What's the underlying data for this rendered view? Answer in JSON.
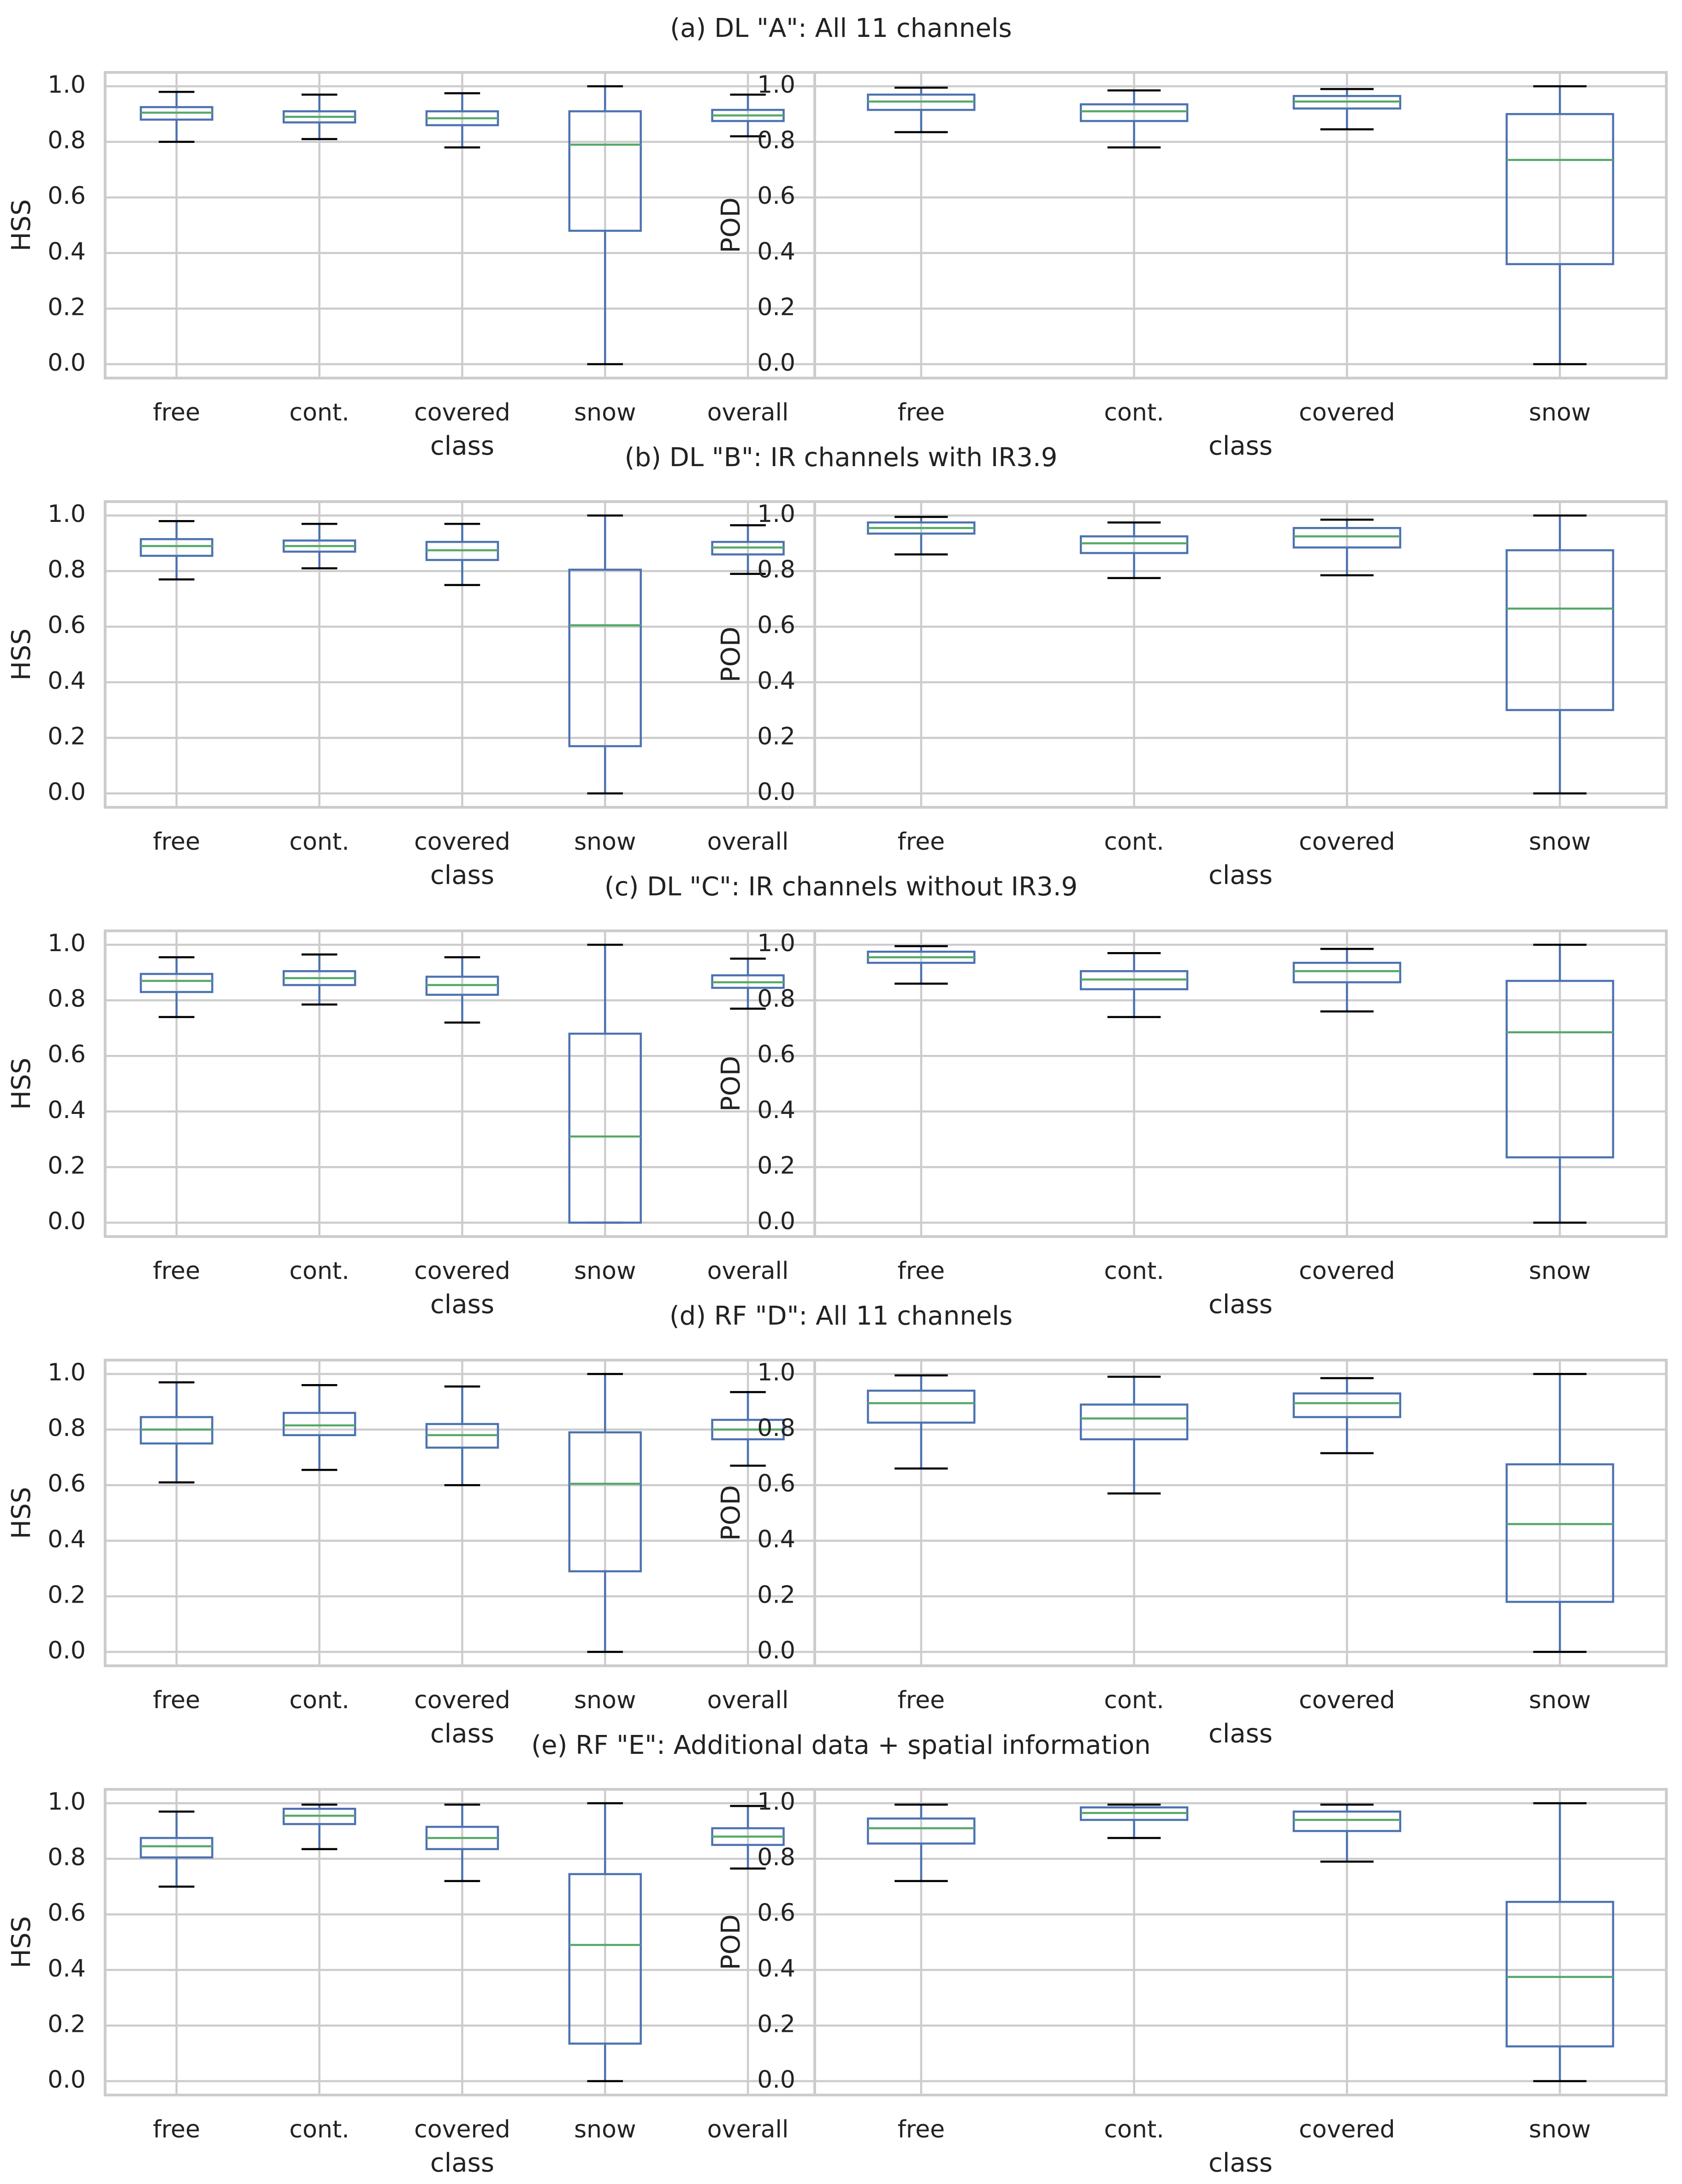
{
  "colors": {
    "box": "#4c72b0",
    "median": "#55a868",
    "cap": "#000000",
    "grid": "#cccccc",
    "text": "#222222"
  },
  "chart_data": [
    {
      "type": "box",
      "panel": "(a)",
      "title": "(a) DL \"A\": All 11 channels",
      "xlabel": "class",
      "ylabel": "HSS",
      "ylim": [
        -0.05,
        1.05
      ],
      "yticks": [
        "0.0",
        "0.2",
        "0.4",
        "0.6",
        "0.8",
        "1.0"
      ],
      "categories": [
        "free",
        "cont.",
        "covered",
        "snow",
        "overall"
      ],
      "boxes": [
        {
          "whislo": 0.8,
          "q1": 0.88,
          "med": 0.905,
          "q3": 0.925,
          "whishi": 0.98
        },
        {
          "whislo": 0.81,
          "q1": 0.87,
          "med": 0.89,
          "q3": 0.91,
          "whishi": 0.97
        },
        {
          "whislo": 0.78,
          "q1": 0.86,
          "med": 0.885,
          "q3": 0.91,
          "whishi": 0.975
        },
        {
          "whislo": 0.0,
          "q1": 0.48,
          "med": 0.79,
          "q3": 0.91,
          "whishi": 1.0
        },
        {
          "whislo": 0.82,
          "q1": 0.875,
          "med": 0.895,
          "q3": 0.915,
          "whishi": 0.97
        }
      ]
    },
    {
      "type": "box",
      "panel": "(a)",
      "xlabel": "class",
      "ylabel": "POD",
      "ylim": [
        -0.05,
        1.05
      ],
      "yticks": [
        "0.0",
        "0.2",
        "0.4",
        "0.6",
        "0.8",
        "1.0"
      ],
      "categories": [
        "free",
        "cont.",
        "covered",
        "snow"
      ],
      "boxes": [
        {
          "whislo": 0.835,
          "q1": 0.915,
          "med": 0.945,
          "q3": 0.97,
          "whishi": 0.995
        },
        {
          "whislo": 0.78,
          "q1": 0.875,
          "med": 0.91,
          "q3": 0.935,
          "whishi": 0.985
        },
        {
          "whislo": 0.845,
          "q1": 0.92,
          "med": 0.945,
          "q3": 0.965,
          "whishi": 0.99
        },
        {
          "whislo": 0.0,
          "q1": 0.36,
          "med": 0.735,
          "q3": 0.9,
          "whishi": 1.0
        }
      ]
    },
    {
      "type": "box",
      "panel": "(b)",
      "title": "(b) DL \"B\": IR channels with IR3.9",
      "xlabel": "class",
      "ylabel": "HSS",
      "ylim": [
        -0.05,
        1.05
      ],
      "yticks": [
        "0.0",
        "0.2",
        "0.4",
        "0.6",
        "0.8",
        "1.0"
      ],
      "categories": [
        "free",
        "cont.",
        "covered",
        "snow",
        "overall"
      ],
      "boxes": [
        {
          "whislo": 0.77,
          "q1": 0.855,
          "med": 0.89,
          "q3": 0.915,
          "whishi": 0.98
        },
        {
          "whislo": 0.81,
          "q1": 0.87,
          "med": 0.89,
          "q3": 0.91,
          "whishi": 0.97
        },
        {
          "whislo": 0.75,
          "q1": 0.84,
          "med": 0.875,
          "q3": 0.905,
          "whishi": 0.97
        },
        {
          "whislo": 0.0,
          "q1": 0.17,
          "med": 0.605,
          "q3": 0.805,
          "whishi": 1.0
        },
        {
          "whislo": 0.79,
          "q1": 0.86,
          "med": 0.885,
          "q3": 0.905,
          "whishi": 0.965
        }
      ]
    },
    {
      "type": "box",
      "panel": "(b)",
      "xlabel": "class",
      "ylabel": "POD",
      "ylim": [
        -0.05,
        1.05
      ],
      "yticks": [
        "0.0",
        "0.2",
        "0.4",
        "0.6",
        "0.8",
        "1.0"
      ],
      "categories": [
        "free",
        "cont.",
        "covered",
        "snow"
      ],
      "boxes": [
        {
          "whislo": 0.86,
          "q1": 0.935,
          "med": 0.955,
          "q3": 0.975,
          "whishi": 0.995
        },
        {
          "whislo": 0.775,
          "q1": 0.865,
          "med": 0.9,
          "q3": 0.925,
          "whishi": 0.975
        },
        {
          "whislo": 0.785,
          "q1": 0.885,
          "med": 0.925,
          "q3": 0.955,
          "whishi": 0.985
        },
        {
          "whislo": 0.0,
          "q1": 0.3,
          "med": 0.665,
          "q3": 0.875,
          "whishi": 1.0
        }
      ]
    },
    {
      "type": "box",
      "panel": "(c)",
      "title": "(c) DL \"C\": IR channels without IR3.9",
      "xlabel": "class",
      "ylabel": "HSS",
      "ylim": [
        -0.05,
        1.05
      ],
      "yticks": [
        "0.0",
        "0.2",
        "0.4",
        "0.6",
        "0.8",
        "1.0"
      ],
      "categories": [
        "free",
        "cont.",
        "covered",
        "snow",
        "overall"
      ],
      "boxes": [
        {
          "whislo": 0.74,
          "q1": 0.83,
          "med": 0.87,
          "q3": 0.895,
          "whishi": 0.955
        },
        {
          "whislo": 0.785,
          "q1": 0.855,
          "med": 0.88,
          "q3": 0.905,
          "whishi": 0.965
        },
        {
          "whislo": 0.72,
          "q1": 0.82,
          "med": 0.855,
          "q3": 0.885,
          "whishi": 0.955
        },
        {
          "whislo": 0.0,
          "q1": 0.0,
          "med": 0.31,
          "q3": 0.68,
          "whishi": 1.0
        },
        {
          "whislo": 0.77,
          "q1": 0.845,
          "med": 0.865,
          "q3": 0.89,
          "whishi": 0.95
        }
      ]
    },
    {
      "type": "box",
      "panel": "(c)",
      "xlabel": "class",
      "ylabel": "POD",
      "ylim": [
        -0.05,
        1.05
      ],
      "yticks": [
        "0.0",
        "0.2",
        "0.4",
        "0.6",
        "0.8",
        "1.0"
      ],
      "categories": [
        "free",
        "cont.",
        "covered",
        "snow"
      ],
      "boxes": [
        {
          "whislo": 0.86,
          "q1": 0.935,
          "med": 0.955,
          "q3": 0.975,
          "whishi": 0.995
        },
        {
          "whislo": 0.74,
          "q1": 0.84,
          "med": 0.875,
          "q3": 0.905,
          "whishi": 0.97
        },
        {
          "whislo": 0.76,
          "q1": 0.865,
          "med": 0.905,
          "q3": 0.935,
          "whishi": 0.985
        },
        {
          "whislo": 0.0,
          "q1": 0.235,
          "med": 0.685,
          "q3": 0.87,
          "whishi": 1.0
        }
      ]
    },
    {
      "type": "box",
      "panel": "(d)",
      "title": "(d) RF \"D\": All 11 channels",
      "xlabel": "class",
      "ylabel": "HSS",
      "ylim": [
        -0.05,
        1.05
      ],
      "yticks": [
        "0.0",
        "0.2",
        "0.4",
        "0.6",
        "0.8",
        "1.0"
      ],
      "categories": [
        "free",
        "cont.",
        "covered",
        "snow",
        "overall"
      ],
      "boxes": [
        {
          "whislo": 0.61,
          "q1": 0.75,
          "med": 0.8,
          "q3": 0.845,
          "whishi": 0.97
        },
        {
          "whislo": 0.655,
          "q1": 0.78,
          "med": 0.815,
          "q3": 0.86,
          "whishi": 0.96
        },
        {
          "whislo": 0.6,
          "q1": 0.735,
          "med": 0.78,
          "q3": 0.82,
          "whishi": 0.955
        },
        {
          "whislo": 0.0,
          "q1": 0.29,
          "med": 0.605,
          "q3": 0.79,
          "whishi": 1.0
        },
        {
          "whislo": 0.67,
          "q1": 0.765,
          "med": 0.8,
          "q3": 0.835,
          "whishi": 0.935
        }
      ]
    },
    {
      "type": "box",
      "panel": "(d)",
      "xlabel": "class",
      "ylabel": "POD",
      "ylim": [
        -0.05,
        1.05
      ],
      "yticks": [
        "0.0",
        "0.2",
        "0.4",
        "0.6",
        "0.8",
        "1.0"
      ],
      "categories": [
        "free",
        "cont.",
        "covered",
        "snow"
      ],
      "boxes": [
        {
          "whislo": 0.66,
          "q1": 0.825,
          "med": 0.895,
          "q3": 0.94,
          "whishi": 0.995
        },
        {
          "whislo": 0.57,
          "q1": 0.765,
          "med": 0.84,
          "q3": 0.89,
          "whishi": 0.99
        },
        {
          "whislo": 0.715,
          "q1": 0.845,
          "med": 0.895,
          "q3": 0.93,
          "whishi": 0.985
        },
        {
          "whislo": 0.0,
          "q1": 0.18,
          "med": 0.46,
          "q3": 0.675,
          "whishi": 1.0
        }
      ]
    },
    {
      "type": "box",
      "panel": "(e)",
      "title": "(e) RF \"E\": Additional data + spatial information",
      "xlabel": "class",
      "ylabel": "HSS",
      "ylim": [
        -0.05,
        1.05
      ],
      "yticks": [
        "0.0",
        "0.2",
        "0.4",
        "0.6",
        "0.8",
        "1.0"
      ],
      "categories": [
        "free",
        "cont.",
        "covered",
        "snow",
        "overall"
      ],
      "boxes": [
        {
          "whislo": 0.7,
          "q1": 0.805,
          "med": 0.845,
          "q3": 0.875,
          "whishi": 0.97
        },
        {
          "whislo": 0.835,
          "q1": 0.925,
          "med": 0.955,
          "q3": 0.98,
          "whishi": 0.995
        },
        {
          "whislo": 0.72,
          "q1": 0.835,
          "med": 0.875,
          "q3": 0.915,
          "whishi": 0.995
        },
        {
          "whislo": 0.0,
          "q1": 0.135,
          "med": 0.49,
          "q3": 0.745,
          "whishi": 1.0
        },
        {
          "whislo": 0.765,
          "q1": 0.85,
          "med": 0.88,
          "q3": 0.91,
          "whishi": 0.99
        }
      ]
    },
    {
      "type": "box",
      "panel": "(e)",
      "xlabel": "class",
      "ylabel": "POD",
      "ylim": [
        -0.05,
        1.05
      ],
      "yticks": [
        "0.0",
        "0.2",
        "0.4",
        "0.6",
        "0.8",
        "1.0"
      ],
      "categories": [
        "free",
        "cont.",
        "covered",
        "snow"
      ],
      "boxes": [
        {
          "whislo": 0.72,
          "q1": 0.855,
          "med": 0.91,
          "q3": 0.945,
          "whishi": 0.995
        },
        {
          "whislo": 0.875,
          "q1": 0.94,
          "med": 0.965,
          "q3": 0.985,
          "whishi": 0.995
        },
        {
          "whislo": 0.79,
          "q1": 0.9,
          "med": 0.94,
          "q3": 0.97,
          "whishi": 0.995
        },
        {
          "whislo": 0.0,
          "q1": 0.125,
          "med": 0.375,
          "q3": 0.645,
          "whishi": 1.0
        }
      ]
    }
  ]
}
